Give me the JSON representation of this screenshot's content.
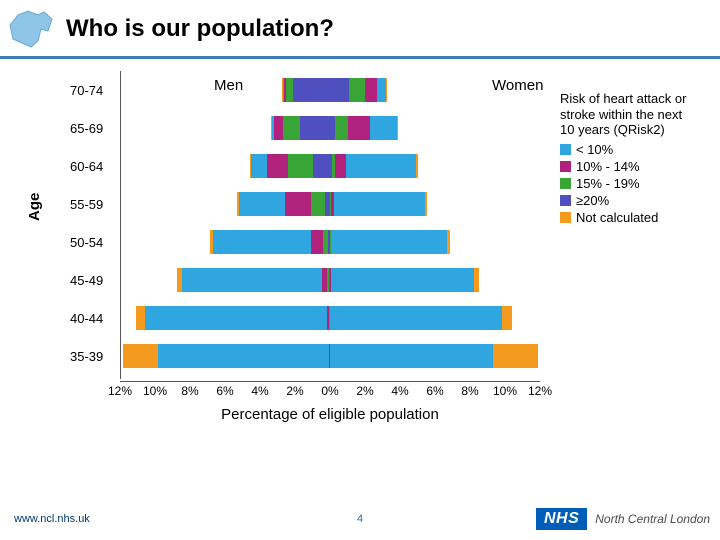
{
  "header": {
    "title": "Who is our population?"
  },
  "axis": {
    "y_title": "Age",
    "x_title": "Percentage of eligible population",
    "x_ticks": [
      "12%",
      "10%",
      "8%",
      "6%",
      "4%",
      "2%",
      "0%",
      "2%",
      "4%",
      "6%",
      "8%",
      "10%",
      "12%"
    ],
    "x_max_pct": 12
  },
  "side_labels": {
    "men": "Men",
    "women": "Women"
  },
  "colors": {
    "lt10": "#2fa6df",
    "10_14": "#b1227d",
    "15_19": "#3aa537",
    "ge20": "#4f4fc0",
    "notcalc": "#f39a1f",
    "border": "#555555",
    "rule": "#3b7fb6",
    "nhs_bg": "#005eb8"
  },
  "legend": {
    "title": "Risk of heart attack or stroke within the next 10 years (QRisk2)",
    "items": [
      {
        "key": "lt10",
        "label": "< 10%"
      },
      {
        "key": "10_14",
        "label": "10% - 14%"
      },
      {
        "key": "15_19",
        "label": "15% - 19%"
      },
      {
        "key": "ge20",
        "label": "≥20%"
      },
      {
        "key": "notcalc",
        "label": "Not calculated"
      }
    ]
  },
  "rows": [
    {
      "age": "70-74",
      "men": [
        {
          "k": "ge20",
          "v": 2.1
        },
        {
          "k": "15_19",
          "v": 0.4
        },
        {
          "k": "10_14",
          "v": 0.15
        },
        {
          "k": "lt10",
          "v": 0.05
        },
        {
          "k": "notcalc",
          "v": 0.05
        }
      ],
      "women": [
        {
          "k": "ge20",
          "v": 1.1
        },
        {
          "k": "15_19",
          "v": 0.9
        },
        {
          "k": "10_14",
          "v": 0.7
        },
        {
          "k": "lt10",
          "v": 0.5
        },
        {
          "k": "notcalc",
          "v": 0.05
        }
      ]
    },
    {
      "age": "65-69",
      "men": [
        {
          "k": "ge20",
          "v": 1.7
        },
        {
          "k": "15_19",
          "v": 1.0
        },
        {
          "k": "10_14",
          "v": 0.5
        },
        {
          "k": "lt10",
          "v": 0.1
        },
        {
          "k": "notcalc",
          "v": 0.1
        }
      ],
      "women": [
        {
          "k": "ge20",
          "v": 0.3
        },
        {
          "k": "15_19",
          "v": 0.7
        },
        {
          "k": "10_14",
          "v": 1.3
        },
        {
          "k": "lt10",
          "v": 1.5
        },
        {
          "k": "notcalc",
          "v": 0.1
        }
      ]
    },
    {
      "age": "60-64",
      "men": [
        {
          "k": "ge20",
          "v": 1.0
        },
        {
          "k": "15_19",
          "v": 1.4
        },
        {
          "k": "10_14",
          "v": 1.2
        },
        {
          "k": "lt10",
          "v": 0.9
        },
        {
          "k": "notcalc",
          "v": 0.1
        }
      ],
      "women": [
        {
          "k": "ge20",
          "v": 0.1
        },
        {
          "k": "15_19",
          "v": 0.2
        },
        {
          "k": "10_14",
          "v": 0.6
        },
        {
          "k": "lt10",
          "v": 4.0
        },
        {
          "k": "notcalc",
          "v": 0.1
        }
      ]
    },
    {
      "age": "55-59",
      "men": [
        {
          "k": "ge20",
          "v": 0.3
        },
        {
          "k": "15_19",
          "v": 0.8
        },
        {
          "k": "10_14",
          "v": 1.5
        },
        {
          "k": "lt10",
          "v": 2.6
        },
        {
          "k": "notcalc",
          "v": 0.1
        }
      ],
      "women": [
        {
          "k": "ge20",
          "v": 0.02
        },
        {
          "k": "15_19",
          "v": 0.05
        },
        {
          "k": "10_14",
          "v": 0.15
        },
        {
          "k": "lt10",
          "v": 5.2
        },
        {
          "k": "notcalc",
          "v": 0.1
        }
      ]
    },
    {
      "age": "50-54",
      "men": [
        {
          "k": "ge20",
          "v": 0.1
        },
        {
          "k": "15_19",
          "v": 0.3
        },
        {
          "k": "10_14",
          "v": 0.7
        },
        {
          "k": "lt10",
          "v": 5.6
        },
        {
          "k": "notcalc",
          "v": 0.15
        }
      ],
      "women": [
        {
          "k": "ge20",
          "v": 0.01
        },
        {
          "k": "15_19",
          "v": 0.02
        },
        {
          "k": "10_14",
          "v": 0.05
        },
        {
          "k": "lt10",
          "v": 6.6
        },
        {
          "k": "notcalc",
          "v": 0.15
        }
      ]
    },
    {
      "age": "45-49",
      "men": [
        {
          "k": "ge20",
          "v": 0.05
        },
        {
          "k": "15_19",
          "v": 0.1
        },
        {
          "k": "10_14",
          "v": 0.3
        },
        {
          "k": "lt10",
          "v": 8.0
        },
        {
          "k": "notcalc",
          "v": 0.3
        }
      ],
      "women": [
        {
          "k": "ge20",
          "v": 0.0
        },
        {
          "k": "15_19",
          "v": 0.01
        },
        {
          "k": "10_14",
          "v": 0.02
        },
        {
          "k": "lt10",
          "v": 8.2
        },
        {
          "k": "notcalc",
          "v": 0.3
        }
      ]
    },
    {
      "age": "40-44",
      "men": [
        {
          "k": "ge20",
          "v": 0.02
        },
        {
          "k": "15_19",
          "v": 0.04
        },
        {
          "k": "10_14",
          "v": 0.1
        },
        {
          "k": "lt10",
          "v": 10.4
        },
        {
          "k": "notcalc",
          "v": 0.5
        }
      ],
      "women": [
        {
          "k": "ge20",
          "v": 0.0
        },
        {
          "k": "15_19",
          "v": 0.0
        },
        {
          "k": "10_14",
          "v": 0.01
        },
        {
          "k": "lt10",
          "v": 9.8
        },
        {
          "k": "notcalc",
          "v": 0.6
        }
      ]
    },
    {
      "age": "35-39",
      "men": [
        {
          "k": "ge20",
          "v": 0.0
        },
        {
          "k": "15_19",
          "v": 0.01
        },
        {
          "k": "10_14",
          "v": 0.03
        },
        {
          "k": "lt10",
          "v": 9.8
        },
        {
          "k": "notcalc",
          "v": 2.0
        }
      ],
      "women": [
        {
          "k": "ge20",
          "v": 0.0
        },
        {
          "k": "15_19",
          "v": 0.0
        },
        {
          "k": "10_14",
          "v": 0.0
        },
        {
          "k": "lt10",
          "v": 9.3
        },
        {
          "k": "notcalc",
          "v": 2.6
        }
      ]
    }
  ],
  "footer": {
    "url": "www.ncl.nhs.uk",
    "page": "4",
    "nhs": "NHS",
    "org": "North Central London"
  }
}
